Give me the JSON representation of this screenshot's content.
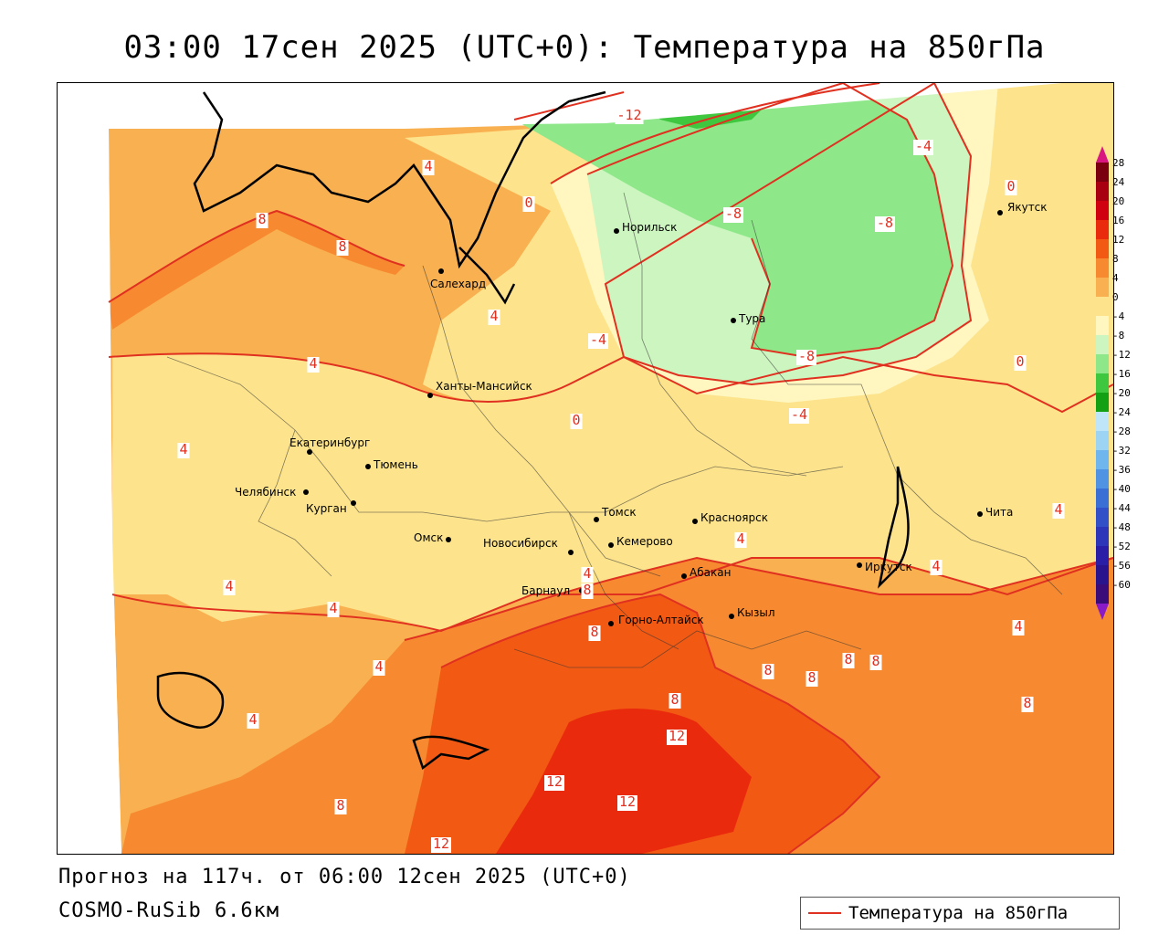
{
  "title": "03:00 17сен 2025 (UTC+0): Температура на 850гПа",
  "forecast_line": "Прогноз на 117ч. от 06:00 12сен 2025 (UTC+0)",
  "model_line": "COSMO-RuSib 6.6км",
  "legend": {
    "label": "Температура на 850гПа",
    "line_color": "#e03020"
  },
  "colorbar": {
    "labels": [
      "28",
      "24",
      "20",
      "16",
      "12",
      "8",
      "4",
      "0",
      "-4",
      "-8",
      "-12",
      "-16",
      "-20",
      "-24",
      "-28",
      "-32",
      "-36",
      "-40",
      "-44",
      "-48",
      "-52",
      "-56",
      "-60"
    ],
    "colors": [
      "#7a0010",
      "#a80010",
      "#d00010",
      "#ea2a0c",
      "#f25a14",
      "#f78a30",
      "#f9b050",
      "#fde48c",
      "#fff6c0",
      "#cdf5c0",
      "#8ee88a",
      "#3fc83f",
      "#14a014",
      "#bfe6f8",
      "#9dd4f4",
      "#6fb6ee",
      "#4f93e2",
      "#3a6fd6",
      "#3250c8",
      "#2d35b8",
      "#2a1ea6",
      "#2a148e",
      "#3a0c7a"
    ],
    "top_arrow_color": "#d81880",
    "bottom_arrow_color": "#8a1ac8"
  },
  "cities": [
    {
      "name": "Салехард"
    },
    {
      "name": "Норильск"
    },
    {
      "name": "Тура"
    },
    {
      "name": "Якутск"
    },
    {
      "name": "Ханты-Мансийск"
    },
    {
      "name": "Екатеринбург"
    },
    {
      "name": "Тюмень"
    },
    {
      "name": "Челябинск"
    },
    {
      "name": "Курган"
    },
    {
      "name": "Омск"
    },
    {
      "name": "Новосибирск"
    },
    {
      "name": "Томск"
    },
    {
      "name": "Кемерово"
    },
    {
      "name": "Красноярск"
    },
    {
      "name": "Барнаул"
    },
    {
      "name": "Абакан"
    },
    {
      "name": "Горно-Алтайск"
    },
    {
      "name": "Кызыл"
    },
    {
      "name": "Иркутск"
    },
    {
      "name": "Чита"
    }
  ],
  "isotherm_labels": [
    "-12",
    "-4",
    "4",
    "0",
    "8",
    "8",
    "-8",
    "-8",
    "4",
    "-4",
    "-8",
    "4",
    "0",
    "-4",
    "4",
    "0",
    "4",
    "4",
    "4",
    "8",
    "4",
    "4",
    "4",
    "4",
    "4",
    "4",
    "8",
    "8",
    "8",
    "8",
    "8",
    "8",
    "8",
    "12",
    "12",
    "12",
    "12",
    "8",
    "0"
  ]
}
